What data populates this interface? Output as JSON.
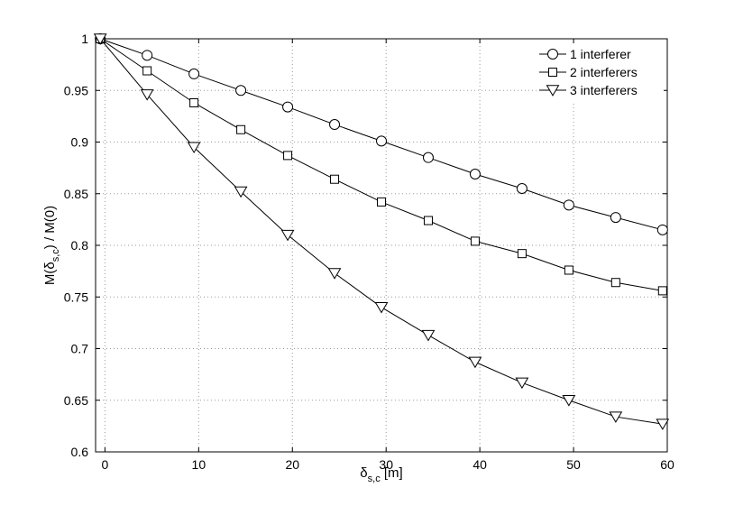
{
  "chart_data": {
    "type": "line",
    "title": "",
    "xlabel_main": "δ",
    "xlabel_sub": "s,c",
    "xlabel_unit": " [m]",
    "ylabel_prefix": "M(δ",
    "ylabel_sub": "s,c",
    "ylabel_suffix": ") / M(0)",
    "xlim": [
      -1,
      60
    ],
    "ylim": [
      0.6,
      1.0
    ],
    "xticks": [
      0,
      10,
      20,
      30,
      40,
      50,
      60
    ],
    "yticks": [
      0.6,
      0.65,
      0.7,
      0.75,
      0.8,
      0.85,
      0.9,
      0.95,
      1.0
    ],
    "xtick_labels": [
      "0",
      "10",
      "20",
      "30",
      "40",
      "50",
      "60"
    ],
    "ytick_labels": [
      "0.6",
      "0.65",
      "0.7",
      "0.75",
      "0.8",
      "0.85",
      "0.9",
      "0.95",
      "1"
    ],
    "grid": true,
    "legend_position": "top-right",
    "x": [
      -0.5,
      4.5,
      9.5,
      14.5,
      19.5,
      24.5,
      29.5,
      34.5,
      39.5,
      44.5,
      49.5,
      54.5,
      59.5
    ],
    "series": [
      {
        "name": "1 interferer",
        "marker": "circle",
        "values": [
          1.0,
          0.984,
          0.966,
          0.95,
          0.934,
          0.917,
          0.901,
          0.885,
          0.869,
          0.855,
          0.839,
          0.827,
          0.815
        ]
      },
      {
        "name": "2 interferers",
        "marker": "square",
        "values": [
          1.0,
          0.969,
          0.938,
          0.912,
          0.887,
          0.864,
          0.842,
          0.824,
          0.804,
          0.792,
          0.776,
          0.764,
          0.756
        ]
      },
      {
        "name": "3 interferers",
        "marker": "triangle-down",
        "values": [
          1.0,
          0.946,
          0.895,
          0.852,
          0.81,
          0.773,
          0.74,
          0.713,
          0.687,
          0.667,
          0.65,
          0.634,
          0.627
        ]
      }
    ]
  }
}
